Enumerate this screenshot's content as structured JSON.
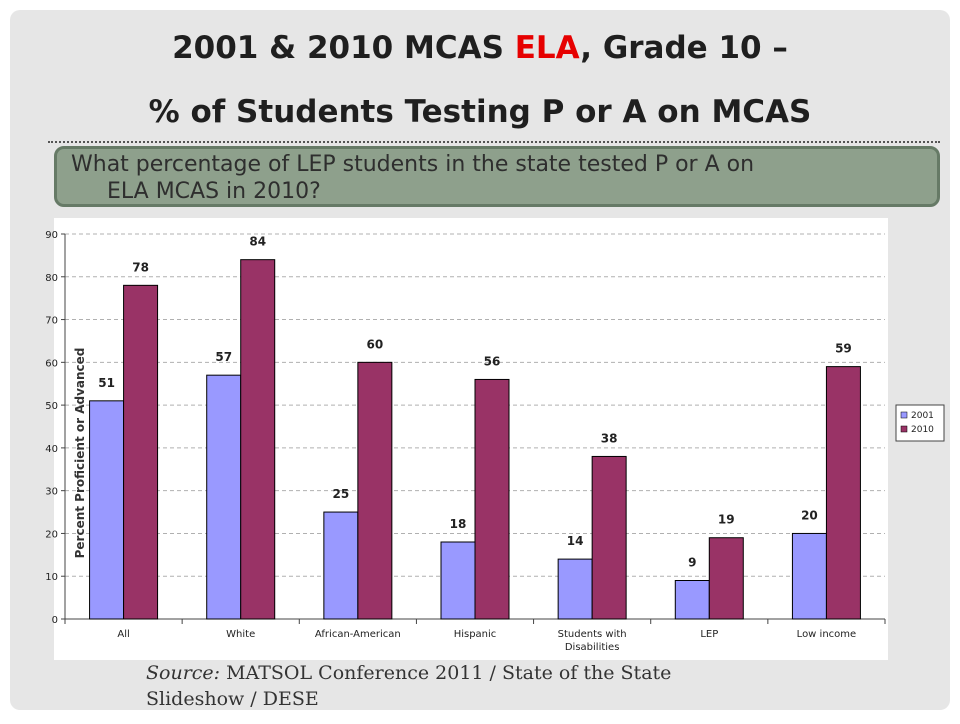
{
  "title": {
    "part1": "2001 & 2010 MCAS ",
    "highlight": "ELA",
    "part2": ", Grade 10 –",
    "line2": "% of Students Testing P or A on MCAS"
  },
  "question": {
    "line1": "What percentage of LEP students in the state tested P or A on",
    "line2": "ELA MCAS in 2010?"
  },
  "source": {
    "label": "Source:",
    "line1": " MATSOL Conference 2011 / State of the State",
    "line2": "Slideshow / DESE"
  },
  "colors": {
    "series_2001": "#9999ff",
    "series_2010": "#993366",
    "highlight": "#e60000",
    "question_bg": "#8ea08c"
  },
  "chart_data": {
    "type": "bar",
    "categories": [
      "All",
      "White",
      "African-American",
      "Hispanic",
      "Students with Disabilities",
      "LEP",
      "Low income"
    ],
    "series": [
      {
        "name": "2001",
        "values": [
          51,
          57,
          25,
          18,
          14,
          9,
          20
        ]
      },
      {
        "name": "2010",
        "values": [
          78,
          84,
          60,
          56,
          38,
          19,
          59
        ]
      }
    ],
    "ylabel": "Percent Proficient or Advanced",
    "ylim": [
      0,
      90
    ],
    "yticks": [
      0,
      10,
      20,
      30,
      40,
      50,
      60,
      70,
      80,
      90
    ],
    "grid": true,
    "legend": "right"
  }
}
